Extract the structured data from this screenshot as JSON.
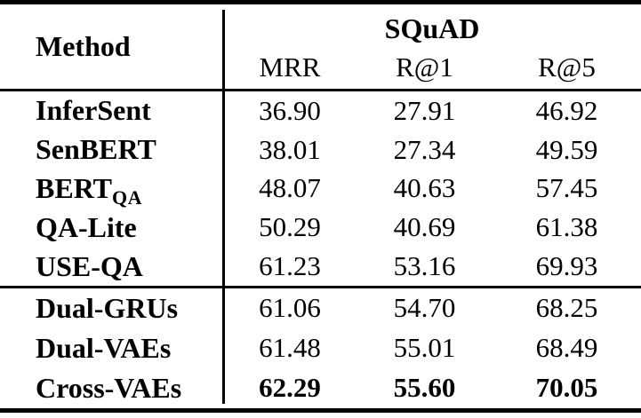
{
  "table": {
    "method_header": "Method",
    "group_header": "SQuAD",
    "columns": [
      "MRR",
      "R@1",
      "R@5"
    ],
    "sections": [
      {
        "rows": [
          {
            "method": "InferSent",
            "values": [
              "36.90",
              "27.91",
              "46.92"
            ]
          },
          {
            "method": "SenBERT",
            "values": [
              "38.01",
              "27.34",
              "49.59"
            ]
          },
          {
            "method": "BERT",
            "method_sub": "QA",
            "values": [
              "48.07",
              "40.63",
              "57.45"
            ]
          },
          {
            "method": "QA-Lite",
            "values": [
              "50.29",
              "40.69",
              "61.38"
            ]
          },
          {
            "method": "USE-QA",
            "values": [
              "61.23",
              "53.16",
              "69.93"
            ]
          }
        ]
      },
      {
        "rows": [
          {
            "method": "Dual-GRUs",
            "values": [
              "61.06",
              "54.70",
              "68.25"
            ],
            "bold": false
          },
          {
            "method": "Dual-VAEs",
            "values": [
              "61.48",
              "55.01",
              "68.49"
            ],
            "bold": false
          },
          {
            "method": "Cross-VAEs",
            "values": [
              "62.29",
              "55.60",
              "70.05"
            ],
            "bold": true
          }
        ]
      }
    ],
    "colors": {
      "text": "#000000",
      "background": "#ffffff",
      "rule": "#000000"
    }
  }
}
